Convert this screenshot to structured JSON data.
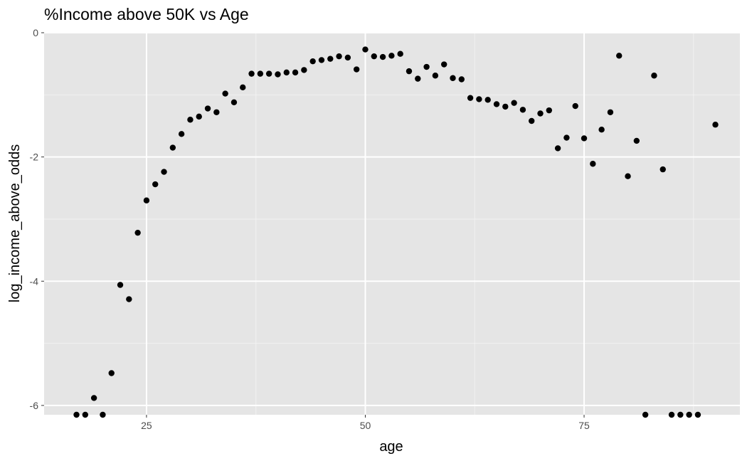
{
  "chart_data": {
    "type": "scatter",
    "title": "%Income above 50K vs Age",
    "xlabel": "age",
    "ylabel": "log_income_above_odds",
    "xlim": [
      13.3,
      92.8
    ],
    "ylim": [
      -6.15,
      0
    ],
    "x_ticks": [
      25,
      50,
      75
    ],
    "x_tick_labels": [
      "25",
      "50",
      "75"
    ],
    "y_ticks": [
      0,
      -2,
      -4,
      -6
    ],
    "y_tick_labels": [
      "0",
      "-2",
      "-4",
      "-6"
    ],
    "grid": true,
    "colors": {
      "panel_background": "#e5e5e5",
      "grid_major": "#ffffff",
      "grid_minor": "#f2f2f2",
      "point": "#000000"
    },
    "points": [
      {
        "x": 17,
        "y": -6.15
      },
      {
        "x": 18,
        "y": -6.15
      },
      {
        "x": 19,
        "y": -5.88
      },
      {
        "x": 20,
        "y": -6.15
      },
      {
        "x": 21,
        "y": -5.48
      },
      {
        "x": 22,
        "y": -4.06
      },
      {
        "x": 23,
        "y": -4.29
      },
      {
        "x": 24,
        "y": -3.22
      },
      {
        "x": 25,
        "y": -2.7
      },
      {
        "x": 26,
        "y": -2.44
      },
      {
        "x": 27,
        "y": -2.24
      },
      {
        "x": 28,
        "y": -1.85
      },
      {
        "x": 29,
        "y": -1.63
      },
      {
        "x": 30,
        "y": -1.4
      },
      {
        "x": 31,
        "y": -1.35
      },
      {
        "x": 32,
        "y": -1.22
      },
      {
        "x": 33,
        "y": -1.28
      },
      {
        "x": 34,
        "y": -0.98
      },
      {
        "x": 35,
        "y": -1.12
      },
      {
        "x": 36,
        "y": -0.88
      },
      {
        "x": 37,
        "y": -0.66
      },
      {
        "x": 38,
        "y": -0.66
      },
      {
        "x": 39,
        "y": -0.66
      },
      {
        "x": 40,
        "y": -0.67
      },
      {
        "x": 41,
        "y": -0.64
      },
      {
        "x": 42,
        "y": -0.64
      },
      {
        "x": 43,
        "y": -0.6
      },
      {
        "x": 44,
        "y": -0.46
      },
      {
        "x": 45,
        "y": -0.44
      },
      {
        "x": 46,
        "y": -0.42
      },
      {
        "x": 47,
        "y": -0.38
      },
      {
        "x": 48,
        "y": -0.4
      },
      {
        "x": 49,
        "y": -0.59
      },
      {
        "x": 50,
        "y": -0.27
      },
      {
        "x": 51,
        "y": -0.38
      },
      {
        "x": 52,
        "y": -0.39
      },
      {
        "x": 53,
        "y": -0.37
      },
      {
        "x": 54,
        "y": -0.34
      },
      {
        "x": 55,
        "y": -0.62
      },
      {
        "x": 56,
        "y": -0.74
      },
      {
        "x": 57,
        "y": -0.55
      },
      {
        "x": 58,
        "y": -0.69
      },
      {
        "x": 59,
        "y": -0.51
      },
      {
        "x": 60,
        "y": -0.73
      },
      {
        "x": 61,
        "y": -0.75
      },
      {
        "x": 62,
        "y": -1.05
      },
      {
        "x": 63,
        "y": -1.07
      },
      {
        "x": 64,
        "y": -1.08
      },
      {
        "x": 65,
        "y": -1.15
      },
      {
        "x": 66,
        "y": -1.19
      },
      {
        "x": 67,
        "y": -1.13
      },
      {
        "x": 68,
        "y": -1.24
      },
      {
        "x": 69,
        "y": -1.42
      },
      {
        "x": 70,
        "y": -1.3
      },
      {
        "x": 71,
        "y": -1.25
      },
      {
        "x": 72,
        "y": -1.86
      },
      {
        "x": 73,
        "y": -1.69
      },
      {
        "x": 74,
        "y": -1.18
      },
      {
        "x": 75,
        "y": -1.7
      },
      {
        "x": 76,
        "y": -2.11
      },
      {
        "x": 77,
        "y": -1.56
      },
      {
        "x": 78,
        "y": -1.28
      },
      {
        "x": 79,
        "y": -0.37
      },
      {
        "x": 80,
        "y": -2.31
      },
      {
        "x": 81,
        "y": -1.74
      },
      {
        "x": 82,
        "y": -6.15
      },
      {
        "x": 83,
        "y": -0.69
      },
      {
        "x": 84,
        "y": -2.2
      },
      {
        "x": 85,
        "y": -6.15
      },
      {
        "x": 86,
        "y": -6.15
      },
      {
        "x": 87,
        "y": -6.15
      },
      {
        "x": 88,
        "y": -6.15
      },
      {
        "x": 90,
        "y": -1.48
      }
    ]
  }
}
